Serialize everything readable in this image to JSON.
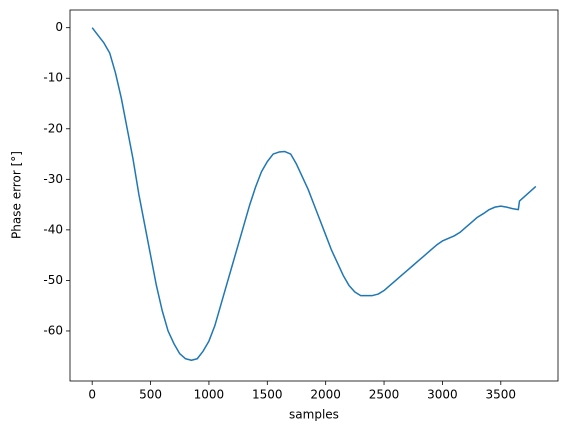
{
  "chart_data": {
    "type": "line",
    "x_label": "samples",
    "y_label": "Phase error [°]",
    "x": [
      0,
      50,
      100,
      150,
      200,
      250,
      300,
      350,
      400,
      450,
      500,
      550,
      600,
      650,
      700,
      750,
      800,
      850,
      900,
      950,
      1000,
      1050,
      1100,
      1150,
      1200,
      1250,
      1300,
      1350,
      1400,
      1450,
      1500,
      1550,
      1600,
      1650,
      1700,
      1750,
      1800,
      1850,
      1900,
      1950,
      2000,
      2050,
      2100,
      2150,
      2200,
      2250,
      2300,
      2350,
      2400,
      2450,
      2500,
      2550,
      2600,
      2650,
      2700,
      2750,
      2800,
      2850,
      2900,
      2950,
      3000,
      3050,
      3100,
      3150,
      3200,
      3250,
      3300,
      3350,
      3400,
      3450,
      3500,
      3550,
      3600,
      3650,
      3660,
      3800
    ],
    "series": [
      {
        "color": "#1f77b4",
        "values": [
          0,
          -1.5,
          -3,
          -5,
          -9,
          -14,
          -20,
          -26,
          -33,
          -39,
          -45,
          -51,
          -56,
          -60,
          -62.5,
          -64.5,
          -65.5,
          -65.8,
          -65.5,
          -64,
          -62,
          -59,
          -55,
          -51,
          -47,
          -43,
          -39,
          -35,
          -31.5,
          -28.5,
          -26.5,
          -25,
          -24.6,
          -24.5,
          -25,
          -27,
          -29.5,
          -32,
          -35,
          -38,
          -41,
          -44,
          -46.5,
          -49,
          -51,
          -52.3,
          -53,
          -53,
          -53,
          -52.7,
          -52,
          -51,
          -50,
          -49,
          -48,
          -47,
          -46,
          -45,
          -44,
          -43,
          -42.2,
          -41.7,
          -41.2,
          -40.5,
          -39.5,
          -38.5,
          -37.5,
          -36.8,
          -36,
          -35.5,
          -35.3,
          -35.5,
          -35.8,
          -36,
          -34.3,
          -31.4
        ]
      }
    ],
    "xlim": [
      -190,
      3990
    ],
    "ylim": [
      -69.9,
      3.5
    ],
    "xticks": [
      0,
      500,
      1000,
      1500,
      2000,
      2500,
      3000,
      3500
    ],
    "yticks": [
      0,
      -10,
      -20,
      -30,
      -40,
      -50,
      -60
    ]
  }
}
